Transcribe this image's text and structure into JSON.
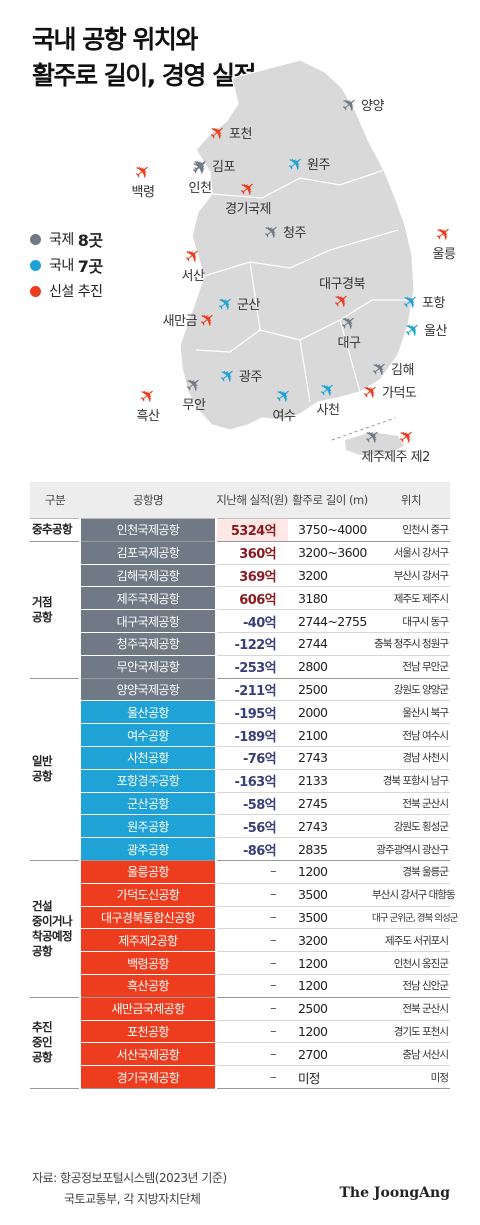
{
  "title_lines": [
    "국내 공항 위치와",
    "활주로 길이, 경영 실적"
  ],
  "colors": {
    "international": "#6f7a86",
    "domestic": "#1fa2d6",
    "new": "#ee3d1e",
    "profit": "#8a1c20",
    "loss": "#3a3f7a",
    "map": "#d9d9d9",
    "map_line": "#ffffff"
  },
  "legend": [
    {
      "label": "국제",
      "count": "8곳",
      "color": "#6f7a86"
    },
    {
      "label": "국내",
      "count": "7곳",
      "color": "#1fa2d6"
    },
    {
      "label": "신설 추진",
      "count": "",
      "color": "#ee3d1e"
    }
  ],
  "map_labels": [
    {
      "name": "양양",
      "kind": "international"
    },
    {
      "name": "포천",
      "kind": "new"
    },
    {
      "name": "김포",
      "kind": "international"
    },
    {
      "name": "원주",
      "kind": "domestic"
    },
    {
      "name": "백령",
      "kind": "new"
    },
    {
      "name": "인천",
      "kind": "international"
    },
    {
      "name": "경기국제",
      "kind": "new"
    },
    {
      "name": "청주",
      "kind": "international"
    },
    {
      "name": "울릉",
      "kind": "new"
    },
    {
      "name": "서산",
      "kind": "new"
    },
    {
      "name": "대구경북",
      "kind": "new"
    },
    {
      "name": "군산",
      "kind": "domestic"
    },
    {
      "name": "포항",
      "kind": "domestic"
    },
    {
      "name": "새만금",
      "kind": "new"
    },
    {
      "name": "대구",
      "kind": "international"
    },
    {
      "name": "울산",
      "kind": "domestic"
    },
    {
      "name": "김해",
      "kind": "international"
    },
    {
      "name": "광주",
      "kind": "domestic"
    },
    {
      "name": "무안",
      "kind": "international"
    },
    {
      "name": "가덕도",
      "kind": "new"
    },
    {
      "name": "흑산",
      "kind": "new"
    },
    {
      "name": "여수",
      "kind": "domestic"
    },
    {
      "name": "사천",
      "kind": "domestic"
    },
    {
      "name": "제주",
      "kind": "international"
    },
    {
      "name": "제주 제2",
      "kind": "new"
    }
  ],
  "table_headers": [
    "구분",
    "공항명",
    "지난해 실적(원)",
    "활주로 길이 (m)",
    "위치"
  ],
  "chart_data": {
    "type": "table",
    "value_unit": "억",
    "groups": [
      {
        "category": "중추공항",
        "color": "#6f7a86",
        "rows": [
          {
            "name": "인천국제공항",
            "value": "5324억",
            "runway": "3750~4000",
            "location": "인천시 중구"
          }
        ]
      },
      {
        "category": "거점 공항",
        "color": "#6f7a86",
        "rows": [
          {
            "name": "김포국제공항",
            "value": "360억",
            "runway": "3200~3600",
            "location": "서울시 강서구"
          },
          {
            "name": "김해국제공항",
            "value": "369억",
            "runway": "3200",
            "location": "부산시 강서구"
          },
          {
            "name": "제주국제공항",
            "value": "606억",
            "runway": "3180",
            "location": "제주도 제주시"
          },
          {
            "name": "대구국제공항",
            "value": "-40억",
            "runway": "2744~2755",
            "location": "대구시 동구"
          },
          {
            "name": "청주국제공항",
            "value": "-122억",
            "runway": "2744",
            "location": "충북 청주시 청원구"
          },
          {
            "name": "무안국제공항",
            "value": "-253억",
            "runway": "2800",
            "location": "전남 무안군"
          }
        ]
      },
      {
        "category": "일반 공항",
        "color": "#1fa2d6",
        "rows": [
          {
            "name": "양양국제공항",
            "value": "-211억",
            "runway": "2500",
            "location": "강원도 양양군",
            "color": "#6f7a86"
          },
          {
            "name": "울산공항",
            "value": "-195억",
            "runway": "2000",
            "location": "울산시 북구"
          },
          {
            "name": "여수공항",
            "value": "-189억",
            "runway": "2100",
            "location": "전남 여수시"
          },
          {
            "name": "사천공항",
            "value": "-76억",
            "runway": "2743",
            "location": "경남 사천시"
          },
          {
            "name": "포항경주공항",
            "value": "-163억",
            "runway": "2133",
            "location": "경북 포항시 남구"
          },
          {
            "name": "군산공항",
            "value": "-58억",
            "runway": "2745",
            "location": "전북 군산시"
          },
          {
            "name": "원주공항",
            "value": "-56억",
            "runway": "2743",
            "location": "강원도 횡성군"
          },
          {
            "name": "광주공항",
            "value": "-86억",
            "runway": "2835",
            "location": "광주광역시 광산구"
          }
        ]
      },
      {
        "category": "건설 중이거나 착공예정 공항",
        "color": "#ee3d1e",
        "rows": [
          {
            "name": "울릉공항",
            "value": "–",
            "runway": "1200",
            "location": "경북 울릉군"
          },
          {
            "name": "가덕도신공항",
            "value": "–",
            "runway": "3500",
            "location": "부산시 강서구 대항동"
          },
          {
            "name": "대구경북통합신공항",
            "value": "–",
            "runway": "3500",
            "location": "대구 군위군, 경북 의성군"
          },
          {
            "name": "제주제2공항",
            "value": "–",
            "runway": "3200",
            "location": "제주도 서귀포시"
          },
          {
            "name": "백령공항",
            "value": "–",
            "runway": "1200",
            "location": "인천시 옹진군"
          },
          {
            "name": "흑산공항",
            "value": "–",
            "runway": "1200",
            "location": "전남 신안군"
          }
        ]
      },
      {
        "category": "추진 중인 공항",
        "color": "#ee3d1e",
        "rows": [
          {
            "name": "새만금국제공항",
            "value": "–",
            "runway": "2500",
            "location": "전북 군산시"
          },
          {
            "name": "포천공항",
            "value": "–",
            "runway": "1200",
            "location": "경기도 포천시"
          },
          {
            "name": "서산국제공항",
            "value": "–",
            "runway": "2700",
            "location": "충남 서산시"
          },
          {
            "name": "경기국제공항",
            "value": "–",
            "runway": "미정",
            "location": "미정"
          }
        ]
      }
    ]
  },
  "footer": {
    "source_line1": "자료: 항공정보포털시스템(2023년 기준)",
    "source_line2": "국토교통부, 각 지방자치단체",
    "brand": "The JoongAng"
  }
}
